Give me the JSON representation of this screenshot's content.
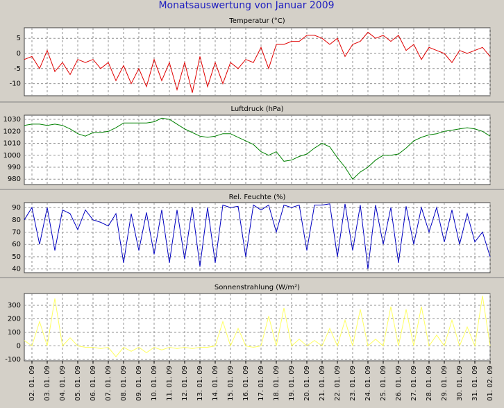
{
  "title": "Monatsauswertung von Januar 2009",
  "chart_data": [
    {
      "type": "line",
      "title": "Temperatur (°C)",
      "color": "#e00000",
      "ylim": [
        -14,
        8.5
      ],
      "yticks": [
        -10,
        -5,
        0,
        5
      ],
      "grid": true,
      "values": [
        -2,
        -1,
        -5,
        1,
        -6,
        -3,
        -7,
        -2,
        -3,
        -2,
        -5,
        -3,
        -9,
        -4,
        -10,
        -5,
        -11,
        -2,
        -9,
        -3,
        -12,
        -3,
        -13,
        -1,
        -11,
        -3,
        -10,
        -3,
        -5,
        -2,
        -3,
        2,
        -5,
        3,
        3,
        4,
        4,
        6,
        6,
        5,
        3,
        5,
        -1,
        3,
        4,
        7,
        5,
        6,
        4,
        6,
        1,
        3,
        -2,
        2,
        1,
        0,
        -3,
        1,
        0,
        1,
        2,
        -1
      ]
    },
    {
      "type": "line",
      "title": "Luftdruck (hPa)",
      "color": "#008000",
      "ylim": [
        975.5,
        1033.5
      ],
      "yticks": [
        980,
        990,
        1000,
        1010,
        1020,
        1030
      ],
      "grid": true,
      "values": [
        1025,
        1026,
        1026,
        1025,
        1026,
        1025,
        1022,
        1018,
        1016,
        1019,
        1019,
        1020,
        1023,
        1027,
        1027,
        1027,
        1027,
        1028,
        1031,
        1030,
        1026,
        1022,
        1019,
        1016,
        1015,
        1016,
        1018,
        1018,
        1015,
        1012,
        1009,
        1003,
        1000,
        1003,
        995,
        996,
        999,
        1001,
        1006,
        1010,
        1007,
        998,
        990,
        980,
        986,
        990,
        996,
        1000,
        1000,
        1001,
        1006,
        1012,
        1015,
        1017,
        1018,
        1020,
        1021,
        1022,
        1023,
        1022,
        1020,
        1016
      ]
    },
    {
      "type": "line",
      "title": "Rel. Feuchte (%)",
      "color": "#0000c0",
      "ylim": [
        37,
        94
      ],
      "yticks": [
        40,
        50,
        60,
        70,
        80,
        90
      ],
      "grid": true,
      "values": [
        80,
        90,
        60,
        90,
        55,
        88,
        85,
        72,
        88,
        80,
        78,
        75,
        85,
        45,
        85,
        55,
        86,
        52,
        88,
        45,
        88,
        48,
        90,
        42,
        90,
        45,
        92,
        90,
        91,
        50,
        92,
        88,
        92,
        70,
        92,
        90,
        92,
        55,
        92,
        92,
        93,
        50,
        93,
        55,
        92,
        40,
        92,
        60,
        90,
        45,
        91,
        60,
        90,
        70,
        90,
        62,
        88,
        60,
        85,
        62,
        70,
        50
      ]
    },
    {
      "type": "line",
      "title": "Sonnenstrahlung (W/m²)",
      "color": "#ffff60",
      "ylim": [
        -110,
        387
      ],
      "yticks": [
        -100,
        0,
        100,
        200,
        300
      ],
      "grid": true,
      "values": [
        40,
        0,
        180,
        0,
        350,
        0,
        60,
        0,
        -10,
        -10,
        -20,
        -10,
        -80,
        -10,
        -40,
        -10,
        -50,
        -10,
        -30,
        -10,
        -20,
        -10,
        -20,
        -10,
        -10,
        0,
        180,
        0,
        130,
        0,
        -10,
        0,
        220,
        0,
        280,
        0,
        50,
        0,
        40,
        0,
        130,
        0,
        190,
        0,
        270,
        0,
        50,
        0,
        290,
        0,
        270,
        0,
        290,
        0,
        80,
        0,
        190,
        0,
        140,
        0,
        370,
        0
      ],
      "x": [
        "2009-01-01T12:00",
        "2009-01-02T00:00",
        "2009-01-02T12:00",
        "2009-01-03T00:00",
        "2009-01-03T12:00",
        "2009-01-04T00:00",
        "2009-01-04T12:00",
        "2009-01-05T00:00",
        "2009-01-05T12:00",
        "2009-01-06T00:00",
        "2009-01-06T12:00",
        "2009-01-07T00:00",
        "2009-01-07T12:00",
        "2009-01-08T00:00",
        "2009-01-08T12:00",
        "2009-01-09T00:00",
        "2009-01-09T12:00",
        "2009-01-10T00:00",
        "2009-01-10T12:00",
        "2009-01-11T00:00",
        "2009-01-11T12:00",
        "2009-01-12T00:00",
        "2009-01-12T12:00",
        "2009-01-13T00:00",
        "2009-01-13T12:00",
        "2009-01-14T00:00",
        "2009-01-14T12:00",
        "2009-01-15T00:00",
        "2009-01-15T12:00",
        "2009-01-16T00:00",
        "2009-01-16T12:00",
        "2009-01-17T00:00",
        "2009-01-17T12:00",
        "2009-01-18T00:00",
        "2009-01-18T12:00",
        "2009-01-19T00:00",
        "2009-01-19T12:00",
        "2009-01-20T00:00",
        "2009-01-20T12:00",
        "2009-01-21T00:00",
        "2009-01-21T12:00",
        "2009-01-22T00:00",
        "2009-01-22T12:00",
        "2009-01-23T00:00",
        "2009-01-23T12:00",
        "2009-01-24T00:00",
        "2009-01-24T12:00",
        "2009-01-25T00:00",
        "2009-01-25T12:00",
        "2009-01-26T00:00",
        "2009-01-26T12:00",
        "2009-01-27T00:00",
        "2009-01-27T12:00",
        "2009-01-28T00:00",
        "2009-01-28T12:00",
        "2009-01-29T00:00",
        "2009-01-29T12:00",
        "2009-01-30T00:00",
        "2009-01-30T12:00",
        "2009-01-31T00:00",
        "2009-01-31T12:00",
        "2009-02-01T00:00"
      ],
      "xlim": [
        "2009-01-01T12:00",
        "2009-02-01T00:00"
      ],
      "xticks": [
        {
          "value": "2009-01-02T00:00",
          "label": "02. 01. 09"
        },
        {
          "value": "2009-01-03T00:00",
          "label": "03. 01. 09"
        },
        {
          "value": "2009-01-04T00:00",
          "label": "04. 01. 09"
        },
        {
          "value": "2009-01-05T00:00",
          "label": "05. 01. 09"
        },
        {
          "value": "2009-01-06T00:00",
          "label": "06. 01. 09"
        },
        {
          "value": "2009-01-07T00:00",
          "label": "07. 01. 09"
        },
        {
          "value": "2009-01-08T00:00",
          "label": "08. 01. 09"
        },
        {
          "value": "2009-01-09T00:00",
          "label": "09. 01. 09"
        },
        {
          "value": "2009-01-10T00:00",
          "label": "10. 01. 09"
        },
        {
          "value": "2009-01-11T00:00",
          "label": "11. 01. 09"
        },
        {
          "value": "2009-01-12T00:00",
          "label": "12. 01. 09"
        },
        {
          "value": "2009-01-13T00:00",
          "label": "13. 01. 09"
        },
        {
          "value": "2009-01-14T00:00",
          "label": "14. 01. 09"
        },
        {
          "value": "2009-01-15T00:00",
          "label": "15. 01. 09"
        },
        {
          "value": "2009-01-16T00:00",
          "label": "16. 01. 09"
        },
        {
          "value": "2009-01-17T00:00",
          "label": "17. 01. 09"
        },
        {
          "value": "2009-01-18T00:00",
          "label": "18. 01. 09"
        },
        {
          "value": "2009-01-19T00:00",
          "label": "19. 01. 09"
        },
        {
          "value": "2009-01-20T00:00",
          "label": "20. 01. 09"
        },
        {
          "value": "2009-01-21T00:00",
          "label": "21. 01. 09"
        },
        {
          "value": "2009-01-22T00:00",
          "label": "22. 01. 09"
        },
        {
          "value": "2009-01-23T00:00",
          "label": "23. 01. 09"
        },
        {
          "value": "2009-01-24T00:00",
          "label": "24. 01. 09"
        },
        {
          "value": "2009-01-25T00:00",
          "label": "25. 01. 09"
        },
        {
          "value": "2009-01-26T00:00",
          "label": "26. 01. 09"
        },
        {
          "value": "2009-01-27T00:00",
          "label": "27. 01. 09"
        },
        {
          "value": "2009-01-28T00:00",
          "label": "28. 01. 09"
        },
        {
          "value": "2009-01-29T00:00",
          "label": "29. 01. 09"
        },
        {
          "value": "2009-01-30T00:00",
          "label": "30. 01. 09"
        },
        {
          "value": "2009-01-31T00:00",
          "label": "31. 01. 09"
        },
        {
          "value": "2009-02-01T00:00",
          "label": "01. 02. 09"
        }
      ]
    }
  ]
}
